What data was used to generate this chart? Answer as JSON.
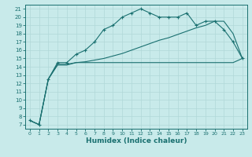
{
  "xlabel": "Humidex (Indice chaleur)",
  "ylabel": "",
  "bg_color": "#c8eaea",
  "grid_color": "#b0d8d8",
  "line_color": "#1a7070",
  "xlim": [
    -0.5,
    23.5
  ],
  "ylim": [
    6.5,
    21.5
  ],
  "yticks": [
    7,
    8,
    9,
    10,
    11,
    12,
    13,
    14,
    15,
    16,
    17,
    18,
    19,
    20,
    21
  ],
  "xticks": [
    0,
    1,
    2,
    3,
    4,
    5,
    6,
    7,
    8,
    9,
    10,
    11,
    12,
    13,
    14,
    15,
    16,
    17,
    18,
    19,
    20,
    21,
    22,
    23
  ],
  "series_max": {
    "x": [
      0,
      1,
      2,
      3,
      4,
      5,
      6,
      7,
      8,
      9,
      10,
      11,
      12,
      13,
      14,
      15,
      16,
      17,
      18,
      19,
      20,
      21,
      22,
      23
    ],
    "y": [
      7.5,
      7.0,
      12.5,
      14.5,
      14.5,
      15.5,
      16.0,
      17.0,
      18.5,
      19.0,
      20.0,
      20.5,
      21.0,
      20.5,
      20.0,
      20.0,
      20.0,
      20.5,
      19.0,
      19.5,
      19.5,
      18.5,
      17.0,
      15.0
    ]
  },
  "series_mean": {
    "x": [
      0,
      1,
      2,
      3,
      4,
      5,
      6,
      7,
      8,
      9,
      10,
      11,
      12,
      13,
      14,
      15,
      16,
      17,
      18,
      19,
      20,
      21,
      22,
      23
    ],
    "y": [
      7.5,
      7.0,
      12.5,
      14.3,
      14.3,
      14.5,
      14.6,
      14.8,
      15.0,
      15.3,
      15.6,
      16.0,
      16.4,
      16.8,
      17.2,
      17.5,
      17.9,
      18.3,
      18.7,
      19.0,
      19.5,
      19.5,
      18.0,
      15.0
    ]
  },
  "series_min": {
    "x": [
      0,
      1,
      2,
      3,
      4,
      5,
      6,
      7,
      8,
      9,
      10,
      11,
      12,
      13,
      14,
      15,
      16,
      17,
      18,
      19,
      20,
      21,
      22,
      23
    ],
    "y": [
      7.5,
      7.0,
      12.5,
      14.2,
      14.2,
      14.5,
      14.5,
      14.5,
      14.5,
      14.5,
      14.5,
      14.5,
      14.5,
      14.5,
      14.5,
      14.5,
      14.5,
      14.5,
      14.5,
      14.5,
      14.5,
      14.5,
      14.5,
      15.0
    ]
  }
}
